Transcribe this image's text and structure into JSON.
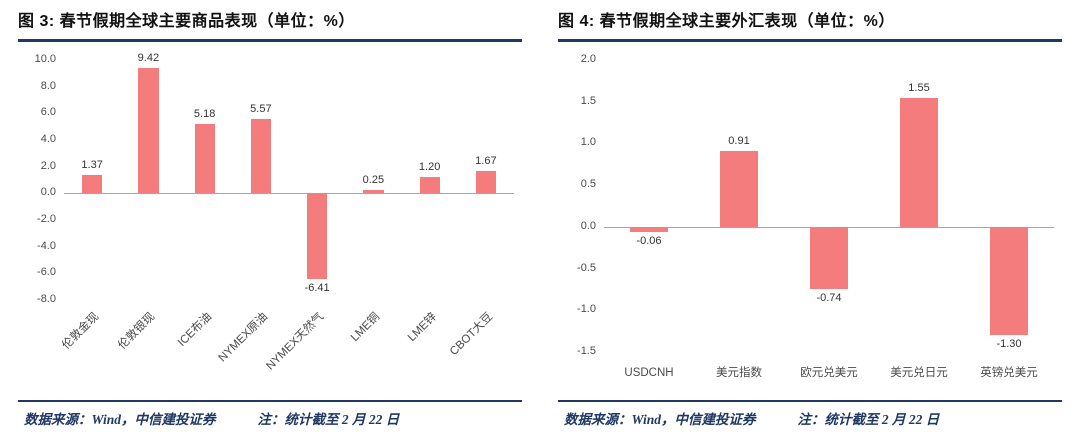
{
  "page": {
    "background": "#ffffff"
  },
  "colors": {
    "bar": "#F47C7C",
    "divider": "#1F3864",
    "footer_text": "#1F3864",
    "axis_text": "#4a4a4a"
  },
  "chart_data": [
    {
      "type": "bar",
      "title": "图 3: 春节假期全球主要商品表现（单位：%）",
      "categories": [
        "伦敦金现",
        "伦敦银现",
        "ICE布油",
        "NYMEX原油",
        "NYMEX天然气",
        "LME铜",
        "LME锌",
        "CBOT大豆"
      ],
      "values": [
        1.37,
        9.42,
        5.18,
        5.57,
        -6.41,
        0.25,
        1.2,
        1.67
      ],
      "value_labels": [
        "1.37",
        "9.42",
        "5.18",
        "5.57",
        "-6.41",
        "0.25",
        "1.20",
        "1.67"
      ],
      "yticks": [
        "10.0",
        "8.0",
        "6.0",
        "4.0",
        "2.0",
        "0.0",
        "-2.0",
        "-4.0",
        "-6.0",
        "-8.0"
      ],
      "ylim": [
        -8.0,
        10.0
      ],
      "bar_color": "#F47C7C",
      "xlabel": "",
      "ylabel": "",
      "grid": false,
      "legend": false,
      "source": "数据来源：Wind，中信建投证券",
      "note": "注：统计截至 2 月 22 日"
    },
    {
      "type": "bar",
      "title": "图 4: 春节假期全球主要外汇表现（单位：%）",
      "categories": [
        "USDCNH",
        "美元指数",
        "欧元兑美元",
        "美元兑日元",
        "英镑兑美元"
      ],
      "values": [
        -0.06,
        0.91,
        -0.74,
        1.55,
        -1.3
      ],
      "value_labels": [
        "-0.06",
        "0.91",
        "-0.74",
        "1.55",
        "-1.30"
      ],
      "yticks": [
        "2.0",
        "1.5",
        "1.0",
        "0.5",
        "0.0",
        "-0.5",
        "-1.0",
        "-1.5"
      ],
      "ylim": [
        -1.5,
        2.0
      ],
      "bar_color": "#F47C7C",
      "xlabel": "",
      "ylabel": "",
      "grid": false,
      "legend": false,
      "source": "数据来源：Wind，中信建投证券",
      "note": "注：统计截至 2 月 22 日"
    }
  ]
}
